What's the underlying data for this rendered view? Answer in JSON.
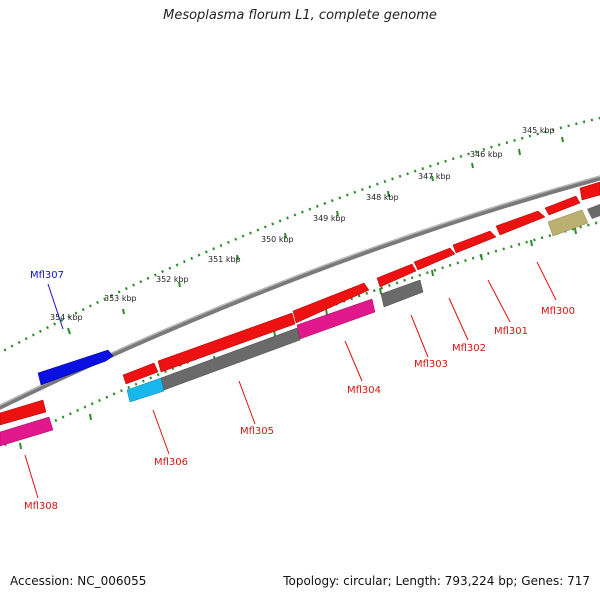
{
  "title": "Mesoplasma florum L1, complete genome",
  "footer": {
    "accession_label": "Accession:",
    "accession": "NC_006055",
    "topology_label": "Topology:",
    "topology": "circular",
    "length_label": "Length:",
    "length": "793,224 bp",
    "genes_label": "Genes:",
    "genes": "717"
  },
  "colors": {
    "backbone": "#8c8c8c",
    "forward_gene": "#ee1111",
    "pink_gene": "#e0188c",
    "gray_gene": "#6a6a6a",
    "blue_gene": "#0a10e0",
    "cyan_gene": "#18b8ec",
    "olive_gene": "#bcb070",
    "ruler_dots": "#2e8b2e",
    "label_red": "#dd1111",
    "label_blue": "#1111cc"
  },
  "ruler_labels": [
    "345 kbp",
    "346 kbp",
    "347 kbp",
    "348 kbp",
    "349 kbp",
    "350 kbp",
    "351 kbp",
    "352 kbp",
    "353 kbp",
    "354 kbp"
  ],
  "gene_labels": [
    {
      "text": "Mfl300",
      "color": "red"
    },
    {
      "text": "Mfl301",
      "color": "red"
    },
    {
      "text": "Mfl302",
      "color": "red"
    },
    {
      "text": "Mfl303",
      "color": "red"
    },
    {
      "text": "Mfl304",
      "color": "red"
    },
    {
      "text": "Mfl305",
      "color": "red"
    },
    {
      "text": "Mfl306",
      "color": "red"
    },
    {
      "text": "Mfl307",
      "color": "blue"
    },
    {
      "text": "Mfl308",
      "color": "red"
    }
  ]
}
